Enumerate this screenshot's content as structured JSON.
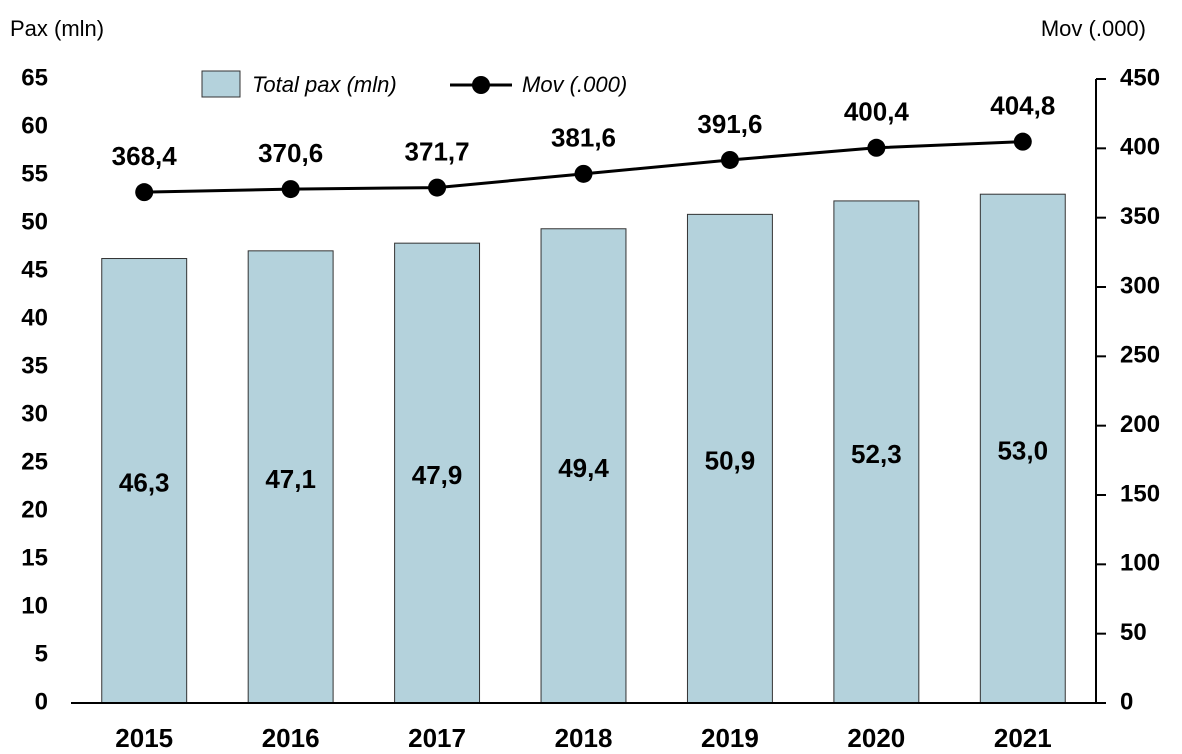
{
  "chart_data": {
    "type": "bar",
    "y_axis_label": "Pax (mln)",
    "y2_axis_label": "Mov (.000)",
    "categories": [
      "2015",
      "2016",
      "2017",
      "2018",
      "2019",
      "2020",
      "2021"
    ],
    "series": [
      {
        "name": "Total pax (mln)",
        "type": "bar",
        "color": "#b4d2dc",
        "values": [
          46.3,
          47.1,
          47.9,
          49.4,
          50.9,
          52.3,
          53.0
        ],
        "value_labels": [
          "46,3",
          "47,1",
          "47,9",
          "49,4",
          "50,9",
          "52,3",
          "53,0"
        ]
      },
      {
        "name": "Mov (.000)",
        "type": "line",
        "axis": "y2",
        "color": "#000000",
        "values": [
          368.4,
          370.6,
          371.7,
          381.6,
          391.6,
          400.4,
          404.8
        ],
        "value_labels": [
          "368,4",
          "370,6",
          "371,7",
          "381,6",
          "391,6",
          "400,4",
          "404,8"
        ]
      }
    ],
    "ylim": [
      0,
      65
    ],
    "yticks": [
      0,
      5,
      10,
      15,
      20,
      25,
      30,
      35,
      40,
      45,
      50,
      55,
      60,
      65
    ],
    "y2lim": [
      0,
      450
    ],
    "y2ticks": [
      0,
      50,
      100,
      150,
      200,
      250,
      300,
      350,
      400,
      450
    ],
    "grid": false
  }
}
